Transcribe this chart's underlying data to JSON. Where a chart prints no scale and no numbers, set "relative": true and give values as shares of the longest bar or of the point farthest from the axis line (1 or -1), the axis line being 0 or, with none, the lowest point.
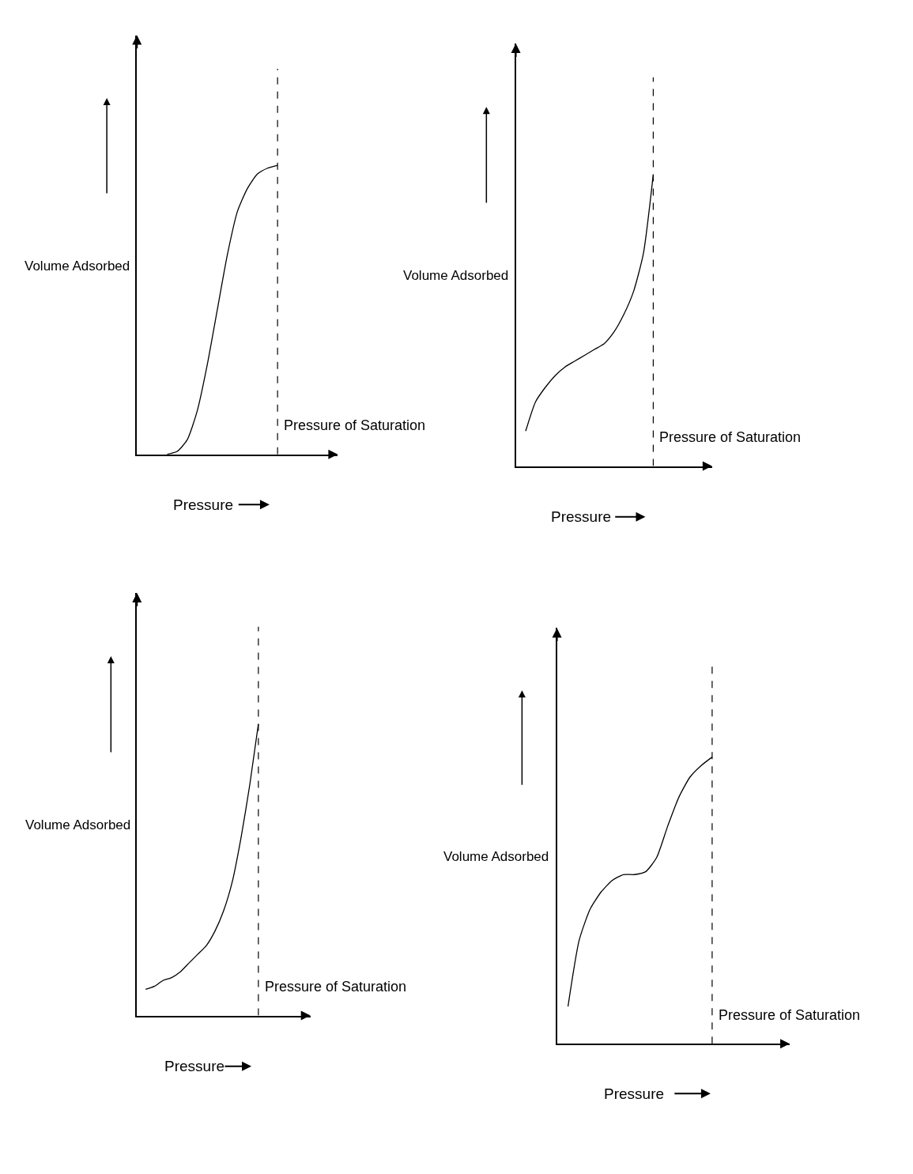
{
  "chart_data": [
    {
      "type": "line",
      "relative": true,
      "xlabel": "Pressure",
      "ylabel": "Volume Adsorbed",
      "annotations": [
        "Pressure of Saturation"
      ],
      "categories": [
        null,
        null,
        null,
        null,
        null,
        null,
        null,
        null,
        null,
        null,
        null,
        null,
        null,
        null,
        null,
        null,
        null,
        null,
        null,
        null,
        null
      ],
      "series": [
        {
          "color": "#000000",
          "values": [
            null,
            null,
            null,
            0,
            0.01,
            0.05,
            0.15,
            0.31,
            0.5,
            0.69,
            0.84,
            0.92,
            0.97,
            0.99,
            1.0,
            null,
            null,
            null,
            null,
            null,
            null
          ]
        }
      ]
    },
    {
      "type": "line",
      "relative": true,
      "xlabel": "Pressure",
      "ylabel": "Volume Adsorbed",
      "annotations": [
        "Pressure of Saturation"
      ],
      "categories": [
        null,
        null,
        null,
        null,
        null,
        null,
        null,
        null,
        null,
        null,
        null,
        null,
        null,
        null,
        null,
        null,
        null,
        null,
        null,
        null,
        null
      ],
      "series": [
        {
          "color": "#000000",
          "values": [
            null,
            0.12,
            0.22,
            0.27,
            0.31,
            0.34,
            0.36,
            0.38,
            0.4,
            0.42,
            0.46,
            0.52,
            0.6,
            0.73,
            1.0,
            null,
            null,
            null,
            null,
            null,
            null
          ]
        }
      ]
    },
    {
      "type": "line",
      "relative": true,
      "xlabel": "Pressure",
      "ylabel": "Volume Adsorbed",
      "annotations": [
        "Pressure of Saturation"
      ],
      "categories": [
        null,
        null,
        null,
        null,
        null,
        null,
        null,
        null,
        null,
        null,
        null,
        null,
        null,
        null,
        null,
        null,
        null,
        null,
        null,
        null,
        null
      ],
      "series": [
        {
          "color": "#000000",
          "values": [
            null,
            0.09,
            0.1,
            0.12,
            0.13,
            0.15,
            0.18,
            0.21,
            0.24,
            0.29,
            0.36,
            0.46,
            0.61,
            0.79,
            1.0,
            null,
            null,
            null,
            null,
            null,
            null
          ]
        }
      ]
    },
    {
      "type": "line",
      "relative": true,
      "xlabel": "Pressure",
      "ylabel": "Volume Adsorbed",
      "annotations": [
        "Pressure of Saturation"
      ],
      "categories": [
        null,
        null,
        null,
        null,
        null,
        null,
        null,
        null,
        null,
        null,
        null,
        null,
        null,
        null,
        null,
        null,
        null,
        null,
        null,
        null,
        null,
        null
      ],
      "series": [
        {
          "color": "#000000",
          "values": [
            null,
            0.13,
            0.36,
            0.47,
            0.53,
            0.57,
            0.59,
            0.59,
            0.6,
            0.65,
            0.76,
            0.86,
            0.93,
            0.97,
            1.0,
            null,
            null,
            null,
            null,
            null,
            null,
            null
          ]
        }
      ]
    }
  ]
}
